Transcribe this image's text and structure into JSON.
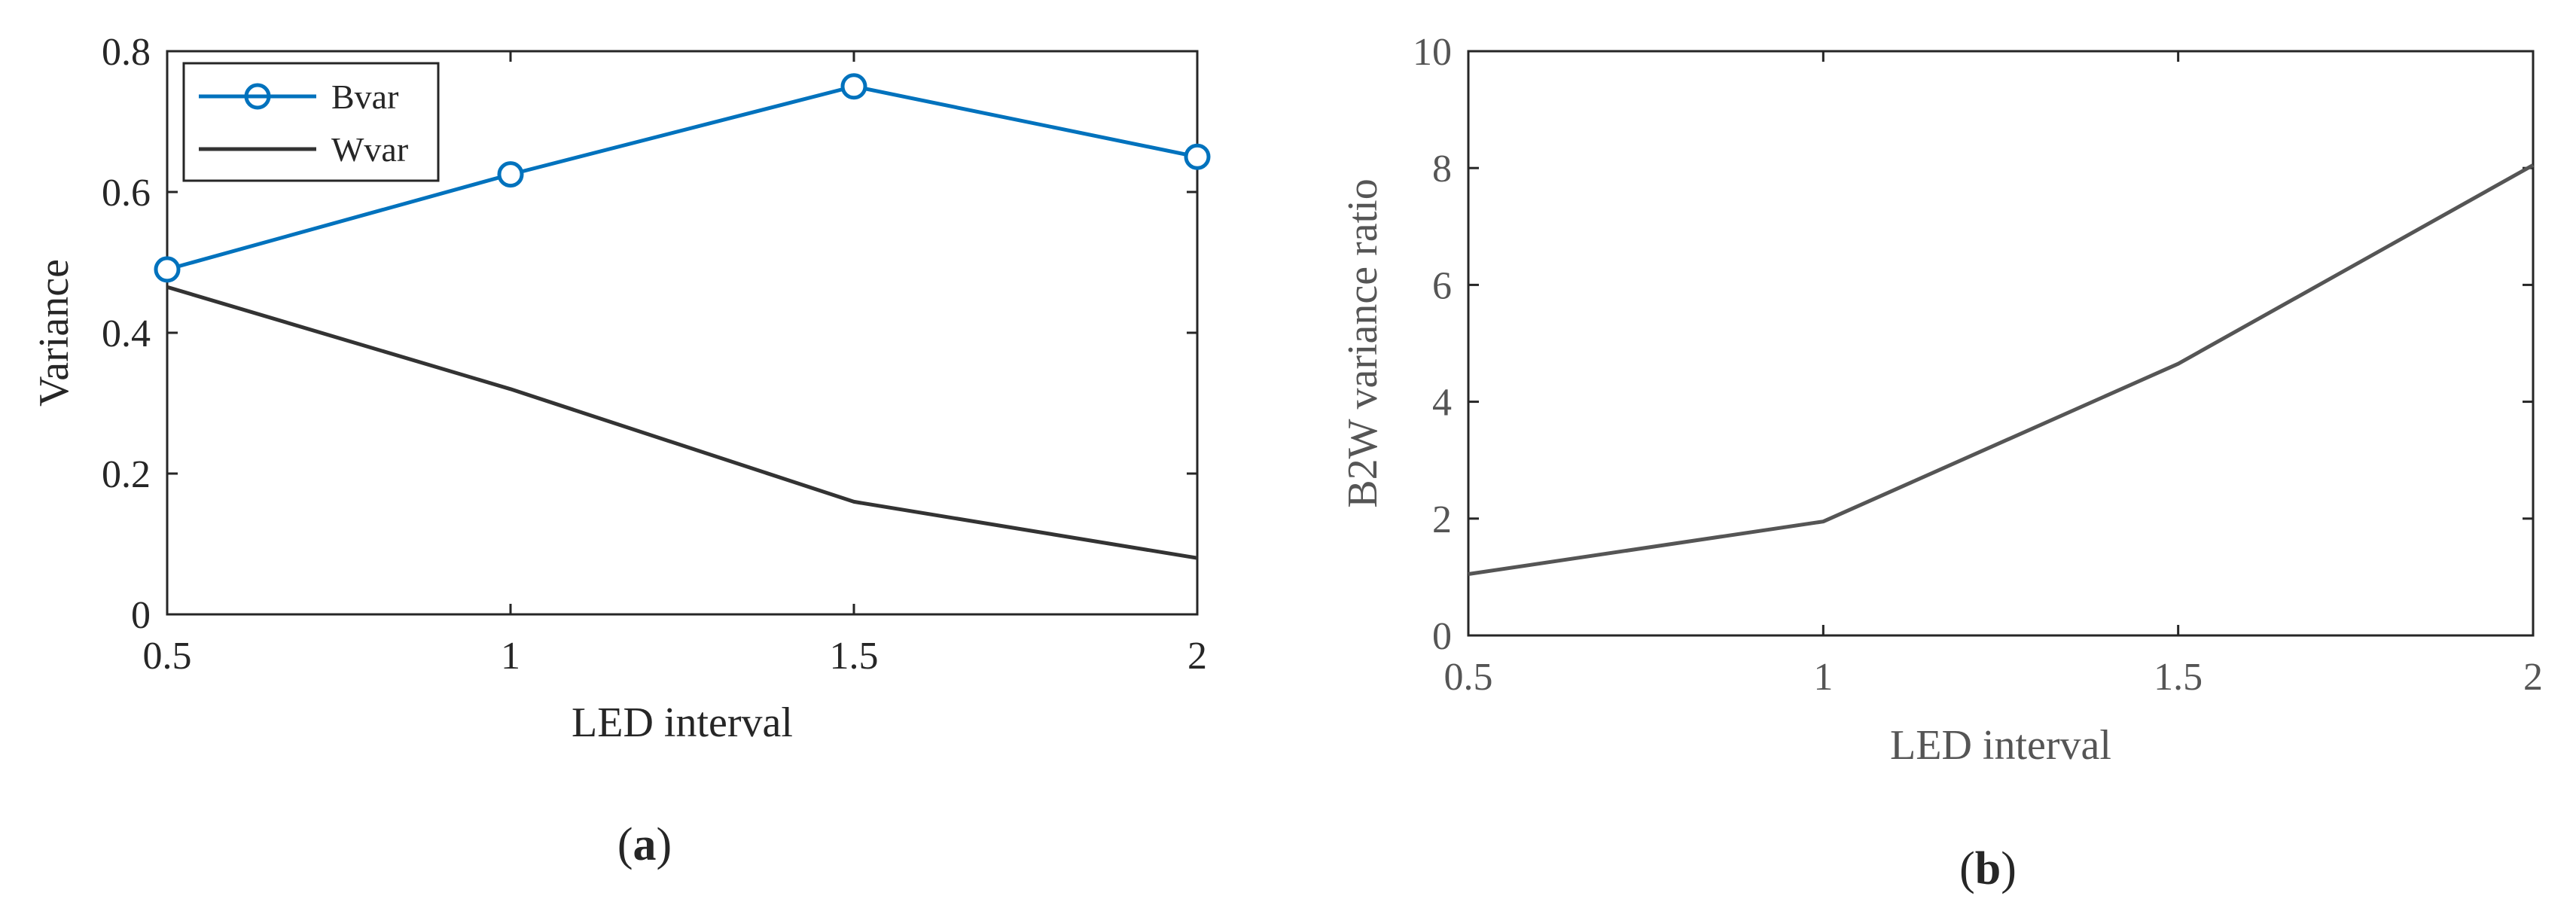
{
  "chart_data": [
    {
      "type": "line",
      "panel_label": "(a)",
      "panel_letter": "a",
      "xlabel": "LED interval",
      "ylabel": "Variance",
      "xlim": [
        0.5,
        2
      ],
      "ylim": [
        0,
        0.8
      ],
      "xticks": [
        0.5,
        1,
        1.5,
        2
      ],
      "xtick_labels": [
        "0.5",
        "1",
        "1.5",
        "2"
      ],
      "yticks": [
        0,
        0.2,
        0.4,
        0.6,
        0.8
      ],
      "ytick_labels": [
        "0",
        "0.2",
        "0.4",
        "0.6",
        "0.8"
      ],
      "grid": false,
      "legend_position": "top-left",
      "x": [
        0.5,
        1,
        1.5,
        2
      ],
      "series": [
        {
          "name": "Bvar",
          "values": [
            0.49,
            0.625,
            0.75,
            0.65
          ],
          "color": "#0072BD",
          "marker": "circle"
        },
        {
          "name": "Wvar",
          "values": [
            0.465,
            0.32,
            0.16,
            0.08
          ],
          "color": "#333333",
          "marker": "none"
        }
      ]
    },
    {
      "type": "line",
      "panel_label": "(b)",
      "panel_letter": "b",
      "xlabel": "LED interval",
      "ylabel": "B2W variance ratio",
      "xlim": [
        0.5,
        2
      ],
      "ylim": [
        0,
        10
      ],
      "xticks": [
        0.5,
        1,
        1.5,
        2
      ],
      "xtick_labels": [
        "0.5",
        "1",
        "1.5",
        "2"
      ],
      "yticks": [
        0,
        2,
        4,
        6,
        8,
        10
      ],
      "ytick_labels": [
        "0",
        "2",
        "4",
        "6",
        "8",
        "10"
      ],
      "grid": false,
      "x": [
        0.5,
        1,
        1.5,
        2
      ],
      "series": [
        {
          "values": [
            1.05,
            1.95,
            4.65,
            8.05
          ],
          "color": "#555555",
          "marker": "none"
        }
      ]
    }
  ]
}
